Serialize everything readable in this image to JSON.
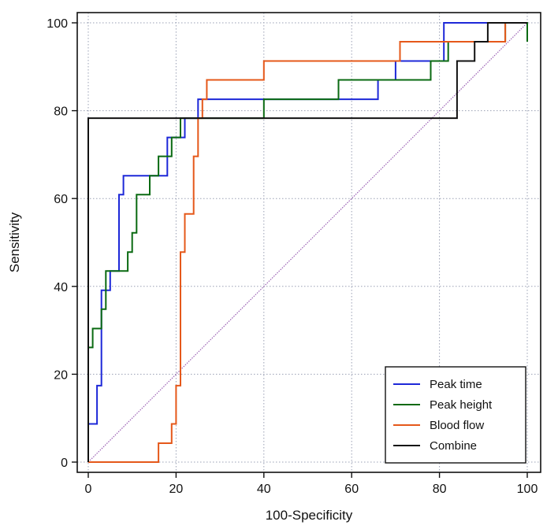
{
  "chart_data": {
    "type": "line",
    "title": "",
    "xlabel": "100-Specificity",
    "ylabel": "Sensitivity",
    "xlim": [
      0,
      100
    ],
    "ylim": [
      0,
      100
    ],
    "xticks": [
      0,
      20,
      40,
      60,
      80,
      100
    ],
    "yticks": [
      0,
      20,
      40,
      60,
      80,
      100
    ],
    "grid": true,
    "legend_position": "bottom-right",
    "reference_line": {
      "x": [
        0,
        100
      ],
      "y": [
        0,
        100
      ],
      "color": "#9a5fb3",
      "style": "dotted"
    },
    "series": [
      {
        "name": "Peak time",
        "color": "#1d28d8",
        "x": [
          0,
          0,
          2,
          2,
          3,
          3,
          5,
          5,
          7,
          7,
          8,
          8,
          10,
          10,
          14,
          14,
          18,
          18,
          22,
          22,
          25,
          25,
          66,
          66,
          70,
          70,
          81,
          81,
          100
        ],
        "y": [
          0,
          8.7,
          8.7,
          17.4,
          17.4,
          39.1,
          39.1,
          43.5,
          43.5,
          60.9,
          60.9,
          65.2,
          65.2,
          65.2,
          65.2,
          65.2,
          65.2,
          73.9,
          73.9,
          78.3,
          78.3,
          82.6,
          82.6,
          87,
          87,
          91.3,
          91.3,
          100,
          100
        ]
      },
      {
        "name": "Peak height",
        "color": "#0a6a12",
        "x": [
          0,
          0,
          1,
          1,
          3,
          3,
          4,
          4,
          6,
          6,
          9,
          9,
          10,
          10,
          11,
          11,
          14,
          14,
          16,
          16,
          19,
          19,
          21,
          21,
          23,
          23,
          40,
          40,
          57,
          57,
          78,
          78,
          82,
          82,
          95,
          95,
          100,
          100
        ],
        "y": [
          0,
          26.1,
          26.1,
          30.4,
          30.4,
          34.8,
          34.8,
          43.5,
          43.5,
          43.5,
          43.5,
          47.8,
          47.8,
          52.2,
          52.2,
          60.9,
          60.9,
          65.2,
          65.2,
          69.6,
          69.6,
          73.9,
          73.9,
          78.3,
          78.3,
          78.3,
          78.3,
          82.6,
          82.6,
          87,
          87,
          91.3,
          91.3,
          95.7,
          95.7,
          100,
          100,
          95.7
        ]
      },
      {
        "name": "Blood flow",
        "color": "#e5581a",
        "x": [
          0,
          16,
          16,
          19,
          19,
          20,
          20,
          21,
          21,
          22,
          22,
          24,
          24,
          25,
          25,
          26,
          26,
          27,
          27,
          40,
          40,
          71,
          71,
          95,
          95
        ],
        "y": [
          0,
          0,
          4.3,
          4.3,
          8.7,
          8.7,
          17.4,
          17.4,
          47.8,
          47.8,
          56.5,
          56.5,
          69.6,
          69.6,
          78.3,
          78.3,
          82.6,
          82.6,
          87,
          87,
          91.3,
          91.3,
          95.7,
          95.7,
          100
        ]
      },
      {
        "name": "Combine",
        "color": "#111111",
        "x": [
          0,
          0,
          84,
          84,
          88,
          88,
          91,
          91,
          100
        ],
        "y": [
          0,
          78.3,
          78.3,
          91.3,
          91.3,
          95.7,
          95.7,
          100,
          100
        ]
      }
    ]
  }
}
